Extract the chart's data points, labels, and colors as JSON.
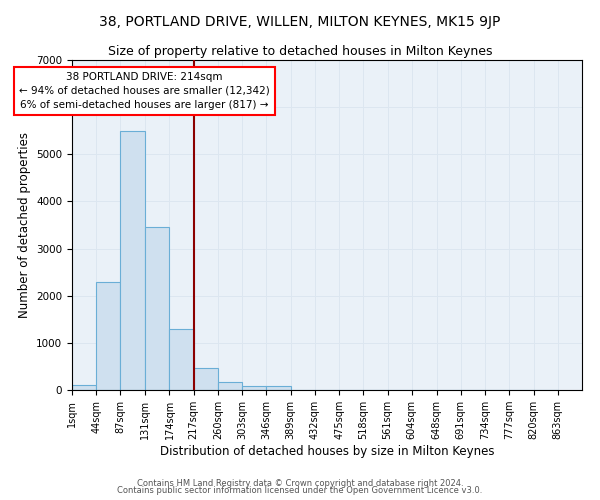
{
  "title": "38, PORTLAND DRIVE, WILLEN, MILTON KEYNES, MK15 9JP",
  "subtitle": "Size of property relative to detached houses in Milton Keynes",
  "xlabel": "Distribution of detached houses by size in Milton Keynes",
  "ylabel": "Number of detached properties",
  "bin_edges": [
    1,
    44,
    87,
    131,
    174,
    217,
    260,
    303,
    346,
    389,
    432,
    475,
    518,
    561,
    604,
    648,
    691,
    734,
    777,
    820,
    863
  ],
  "bar_heights": [
    100,
    2300,
    5500,
    3450,
    1300,
    470,
    160,
    90,
    80,
    0,
    0,
    0,
    0,
    0,
    0,
    0,
    0,
    0,
    0,
    0
  ],
  "bar_color": "#cfe0ef",
  "bar_edge_color": "#6aaed6",
  "red_line_x": 217,
  "annotation_text": "38 PORTLAND DRIVE: 214sqm\n← 94% of detached houses are smaller (12,342)\n6% of semi-detached houses are larger (817) →",
  "ylim": [
    0,
    7000
  ],
  "grid_color": "#dce6f0",
  "background_color": "#eaf1f8",
  "footer_line1": "Contains HM Land Registry data © Crown copyright and database right 2024.",
  "footer_line2": "Contains public sector information licensed under the Open Government Licence v3.0.",
  "title_fontsize": 10,
  "subtitle_fontsize": 9,
  "tick_fontsize": 7,
  "ylabel_fontsize": 8.5,
  "xlabel_fontsize": 8.5,
  "footer_fontsize": 6,
  "annotation_fontsize": 7.5
}
